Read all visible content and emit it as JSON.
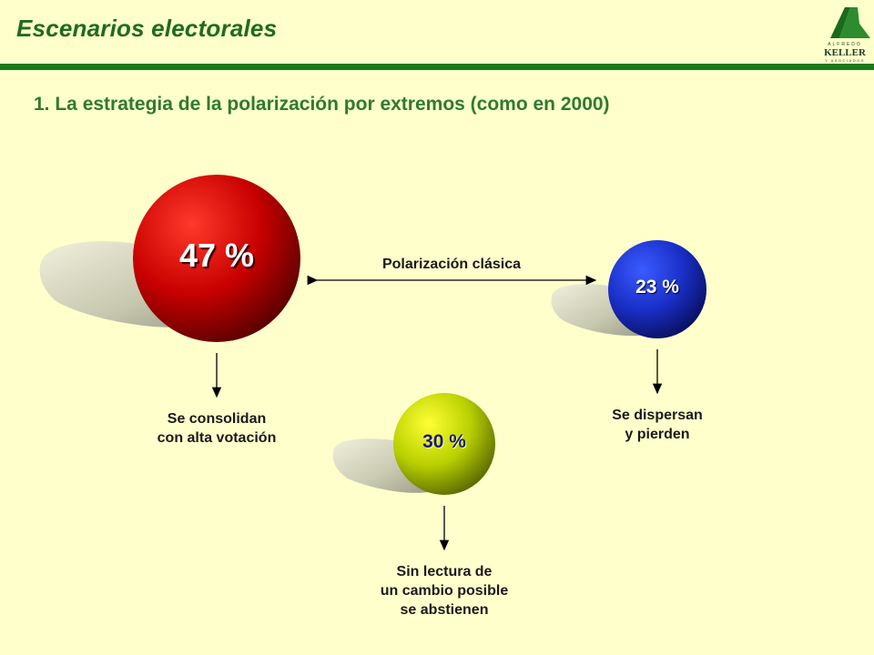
{
  "header": {
    "title": "Escenarios electorales"
  },
  "subtitle": "1. La estrategia de la polarización por extremos (como en 2000)",
  "logo": {
    "top": "ALFREDO",
    "main": "KELLER",
    "bottom": "Y ASOCIADOS"
  },
  "diagram": {
    "arrow_label": "Polarización clásica",
    "groups": [
      {
        "value": "47 %",
        "color": "#c00000",
        "caption": [
          "Se consolidan",
          "con alta votación"
        ]
      },
      {
        "value": "23 %",
        "color": "#1f2fb0",
        "caption": [
          "Se dispersan",
          "y pierden"
        ]
      },
      {
        "value": "30 %",
        "color": "#99b300",
        "caption": [
          "Sin lectura de",
          "un cambio posible",
          "se abstienen"
        ]
      }
    ]
  },
  "colors": {
    "background": "#ffffcc",
    "accent_green": "#1a7a1a",
    "subtitle_green": "#2f7a2f"
  }
}
